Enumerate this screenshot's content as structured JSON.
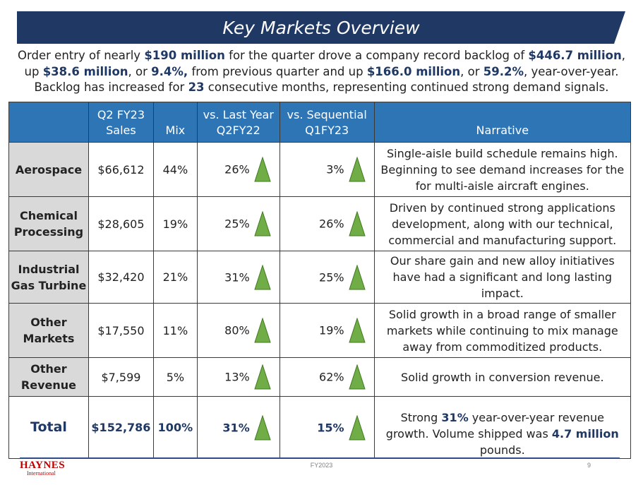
{
  "title": "Key Markets Overview",
  "intro": [
    {
      "t": "Order entry of nearly ",
      "b": false
    },
    {
      "t": "$190 million",
      "b": true
    },
    {
      "t": " for the quarter drove a company record backlog of ",
      "b": false
    },
    {
      "t": "$446.7 million",
      "b": true
    },
    {
      "t": ", up ",
      "b": false
    },
    {
      "t": "$38.6 million",
      "b": true
    },
    {
      "t": ", or ",
      "b": false
    },
    {
      "t": "9.4%,",
      "b": true
    },
    {
      "t": " from previous quarter and up ",
      "b": false
    },
    {
      "t": "$166.0 million",
      "b": true
    },
    {
      "t": ", or ",
      "b": false
    },
    {
      "t": "59.2%",
      "b": true
    },
    {
      "t": ", year-over-year.  Backlog has increased for ",
      "b": false
    },
    {
      "t": "23",
      "b": true
    },
    {
      "t": " consecutive months, representing continued strong demand signals.",
      "b": false
    }
  ],
  "headers": {
    "market": "",
    "sales": "Q2 FY23\nSales",
    "mix": "Mix",
    "vs_last_year": "vs. Last Year\nQ2FY22",
    "vs_sequential": "vs. Sequential\nQ1FY23",
    "narrative": "Narrative"
  },
  "rows": [
    {
      "market": "Aerospace",
      "sales": "$66,612",
      "mix": "44%",
      "yoy": "26%",
      "seq": "3%",
      "narrative": "Single-aisle build schedule remains high. Beginning to see demand increases for the for multi-aisle aircraft engines."
    },
    {
      "market": "Chemical Processing",
      "sales": "$28,605",
      "mix": "19%",
      "yoy": "25%",
      "seq": "26%",
      "narrative": "Driven by continued strong applications development, along with our technical, commercial and manufacturing support."
    },
    {
      "market": "Industrial Gas Turbine",
      "sales": "$32,420",
      "mix": "21%",
      "yoy": "31%",
      "seq": "25%",
      "narrative": "Our share gain and new alloy initiatives have had a significant and long lasting impact."
    },
    {
      "market": "Other Markets",
      "sales": "$17,550",
      "mix": "11%",
      "yoy": "80%",
      "seq": "19%",
      "narrative": "Solid growth in a broad range of smaller markets while continuing to mix manage away from commoditized products."
    },
    {
      "market": "Other Revenue",
      "sales": "$7,599",
      "mix": "5%",
      "yoy": "13%",
      "seq": "62%",
      "narrative": "Solid growth in conversion revenue."
    }
  ],
  "total": {
    "market": "Total",
    "sales": "$152,786",
    "mix": "100%",
    "yoy": "31%",
    "seq": "15%",
    "narrative_parts": [
      {
        "t": "Strong ",
        "b": false
      },
      {
        "t": "31%",
        "b": true
      },
      {
        "t": " year-over-year revenue growth. Volume shipped was ",
        "b": false
      },
      {
        "t": "4.7 million",
        "b": true
      },
      {
        "t": " pounds.",
        "b": false
      }
    ]
  },
  "indicator_icon": "green-up-triangle-icon",
  "colors": {
    "header_bg": "#2e75b6",
    "title_bg": "#1f3864",
    "market_bg": "#d9d9d9",
    "up_arrow": "#70ad47",
    "accent_text": "#1f3864"
  },
  "footer": {
    "logo_main": "HAYNES",
    "logo_sub": "International",
    "center": "FY2023",
    "page": "9"
  }
}
